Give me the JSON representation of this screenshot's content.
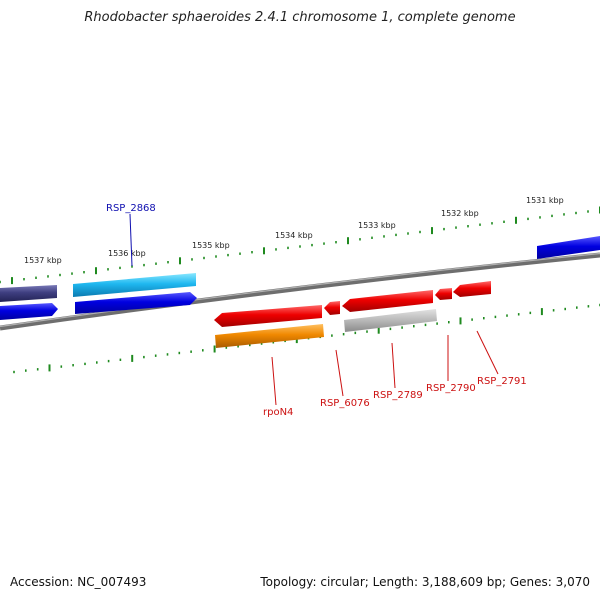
{
  "title": "Rhodobacter sphaeroides 2.4.1 chromosome 1, complete genome",
  "footer": {
    "accession": "Accession: NC_007493",
    "stats": "Topology: circular; Length: 3,188,609 bp; Genes: 3,070"
  },
  "colors": {
    "tick": "#1f8a1f",
    "backbone": "#808080",
    "label_blue": "#1010b0",
    "label_red": "#cc1111"
  },
  "tick_labels": [
    "1537 kbp",
    "1536 kbp",
    "1535 kbp",
    "1534 kbp",
    "1533 kbp",
    "1532 kbp",
    "1531 kbp"
  ],
  "gene_labels": [
    {
      "id": "RSP_2868",
      "color": "#1010b0"
    },
    {
      "id": "rpoN4",
      "color": "#cc1111"
    },
    {
      "id": "RSP_6076",
      "color": "#cc1111"
    },
    {
      "id": "RSP_2789",
      "color": "#cc1111"
    },
    {
      "id": "RSP_2790",
      "color": "#cc1111"
    },
    {
      "id": "RSP_2791",
      "color": "#cc1111"
    }
  ]
}
